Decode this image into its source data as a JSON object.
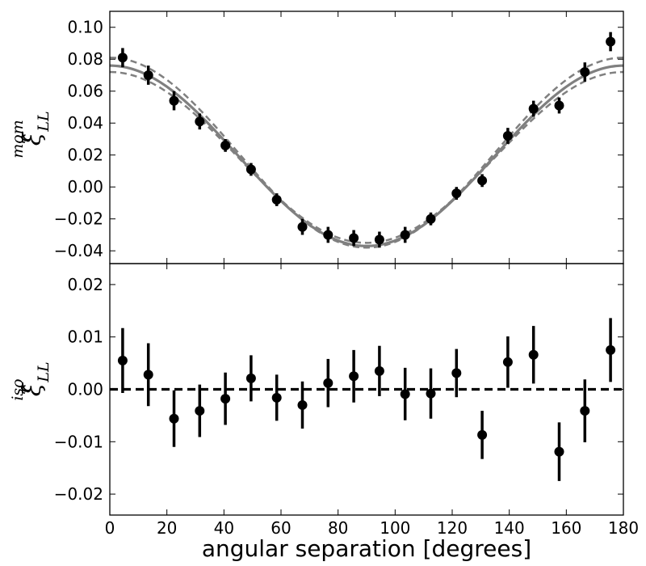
{
  "chart_data": [
    {
      "type": "scatter",
      "ylabel": "ξ̂",
      "ylabel_sub": "LL",
      "ylabel_sup": "mom",
      "xlim": [
        0,
        180
      ],
      "ylim": [
        -0.048,
        0.11
      ],
      "yticks": [
        -0.04,
        -0.02,
        0.0,
        0.02,
        0.04,
        0.06,
        0.08,
        0.1
      ],
      "ytick_labels": [
        "−0.04",
        "−0.02",
        "0.00",
        "0.02",
        "0.04",
        "0.06",
        "0.08",
        "0.10"
      ],
      "grid": false,
      "series": [
        {
          "kind": "errorbar",
          "color": "#000000",
          "x": [
            4.5,
            13.5,
            22.5,
            31.5,
            40.5,
            49.5,
            58.5,
            67.5,
            76.5,
            85.5,
            94.5,
            103.5,
            112.5,
            121.5,
            130.5,
            139.5,
            148.5,
            157.5,
            166.5,
            175.5
          ],
          "y": [
            0.081,
            0.07,
            0.054,
            0.041,
            0.026,
            0.011,
            -0.008,
            -0.025,
            -0.03,
            -0.032,
            -0.033,
            -0.03,
            -0.02,
            -0.004,
            0.004,
            0.032,
            0.049,
            0.051,
            0.072,
            0.091
          ],
          "yerr": [
            0.006,
            0.006,
            0.006,
            0.005,
            0.004,
            0.004,
            0.004,
            0.005,
            0.005,
            0.005,
            0.005,
            0.005,
            0.004,
            0.004,
            0.004,
            0.005,
            0.005,
            0.005,
            0.006,
            0.006
          ]
        },
        {
          "kind": "curve",
          "style": "solid",
          "color": "#808080",
          "model": "cosine",
          "x": [
            0,
            180
          ],
          "amplitude": 0.0565,
          "offset": 0.0195
        },
        {
          "kind": "curve",
          "style": "dashed",
          "color": "#808080",
          "model": "cosine",
          "x": [
            0,
            180
          ],
          "amplitude": 0.0595,
          "offset": 0.0215
        },
        {
          "kind": "curve",
          "style": "dashed",
          "color": "#808080",
          "model": "cosine",
          "x": [
            0,
            180
          ],
          "amplitude": 0.0535,
          "offset": 0.0185
        }
      ]
    },
    {
      "type": "scatter",
      "ylabel": "ξ̂",
      "ylabel_sub": "LL",
      "ylabel_sup": "iso",
      "xlabel": "angular separation [degrees]",
      "xlim": [
        0,
        180
      ],
      "ylim": [
        -0.024,
        0.024
      ],
      "xticks": [
        0,
        20,
        40,
        60,
        80,
        100,
        120,
        140,
        160,
        180
      ],
      "xtick_labels": [
        "0",
        "20",
        "40",
        "60",
        "80",
        "100",
        "120",
        "140",
        "160",
        "180"
      ],
      "yticks": [
        -0.02,
        -0.01,
        0.0,
        0.01,
        0.02
      ],
      "ytick_labels": [
        "−0.02",
        "−0.01",
        "0.00",
        "0.01",
        "0.02"
      ],
      "grid": false,
      "series": [
        {
          "kind": "errorbar",
          "color": "#000000",
          "x": [
            4.5,
            13.5,
            22.5,
            31.5,
            40.5,
            49.5,
            58.5,
            67.5,
            76.5,
            85.5,
            94.5,
            103.5,
            112.5,
            121.5,
            130.5,
            139.5,
            148.5,
            157.5,
            166.5,
            175.5
          ],
          "y": [
            0.0055,
            0.0028,
            -0.0056,
            -0.0041,
            -0.0018,
            0.0021,
            -0.0016,
            -0.003,
            0.0012,
            0.0025,
            0.0035,
            -0.0009,
            -0.0008,
            0.0031,
            -0.0087,
            0.0052,
            0.0066,
            -0.0119,
            -0.0041,
            0.0075
          ],
          "yerr": [
            0.0062,
            0.006,
            0.0054,
            0.005,
            0.005,
            0.0044,
            0.0044,
            0.0045,
            0.0046,
            0.005,
            0.0048,
            0.005,
            0.0048,
            0.0046,
            0.0046,
            0.0049,
            0.0055,
            0.0056,
            0.006,
            0.0061
          ]
        },
        {
          "kind": "hline",
          "style": "dashed",
          "color": "#000000",
          "y": 0.0
        }
      ]
    }
  ]
}
